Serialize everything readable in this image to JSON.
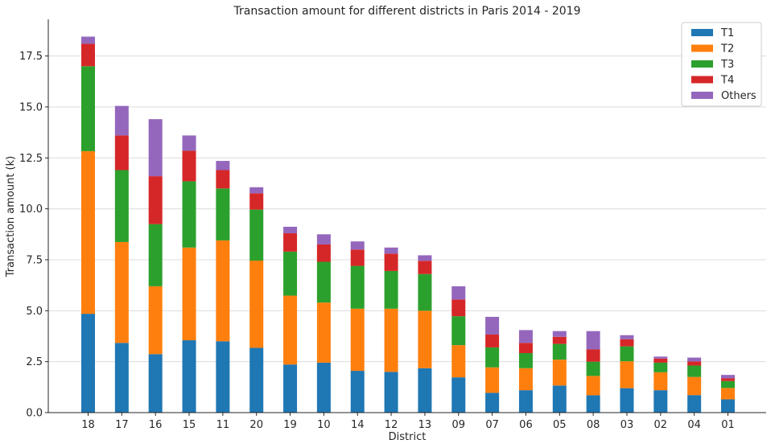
{
  "chart_data": {
    "type": "bar",
    "stacked": true,
    "title": "Transaction amount for different districts in Paris 2014 - 2019",
    "xlabel": "District",
    "ylabel": "Transaction amount (k)",
    "ylim": [
      0,
      19.3
    ],
    "yticks": [
      "0.0",
      "2.5",
      "5.0",
      "7.5",
      "10.0",
      "12.5",
      "15.0",
      "17.5"
    ],
    "ytick_values": [
      0,
      2.5,
      5,
      7.5,
      10,
      12.5,
      15,
      17.5
    ],
    "grid": "horizontal",
    "legend_position": "top-right",
    "categories": [
      "18",
      "17",
      "16",
      "15",
      "11",
      "20",
      "19",
      "10",
      "14",
      "12",
      "13",
      "09",
      "07",
      "06",
      "05",
      "08",
      "03",
      "02",
      "04",
      "01"
    ],
    "series": [
      {
        "name": "T1",
        "color": "#1f77b4",
        "values": [
          4.85,
          3.42,
          2.87,
          3.55,
          3.5,
          3.18,
          2.36,
          2.45,
          2.05,
          2.0,
          2.18,
          1.73,
          0.97,
          1.1,
          1.33,
          0.85,
          1.2,
          1.1,
          0.86,
          0.65
        ]
      },
      {
        "name": "T2",
        "color": "#ff7f0e",
        "values": [
          7.98,
          4.95,
          3.33,
          4.55,
          4.95,
          4.28,
          3.38,
          2.95,
          3.05,
          3.1,
          2.82,
          1.58,
          1.25,
          1.08,
          1.27,
          0.95,
          1.32,
          0.88,
          0.89,
          0.56
        ]
      },
      {
        "name": "T3",
        "color": "#2ca02c",
        "values": [
          4.17,
          3.53,
          3.05,
          3.25,
          2.55,
          2.5,
          2.16,
          2.0,
          2.1,
          1.85,
          1.8,
          1.42,
          0.98,
          0.74,
          0.77,
          0.7,
          0.73,
          0.47,
          0.56,
          0.34
        ]
      },
      {
        "name": "T4",
        "color": "#d62728",
        "values": [
          1.1,
          1.7,
          2.35,
          1.5,
          0.9,
          0.8,
          0.9,
          0.85,
          0.8,
          0.85,
          0.65,
          0.82,
          0.63,
          0.5,
          0.35,
          0.6,
          0.35,
          0.2,
          0.2,
          0.13
        ]
      },
      {
        "name": "Others",
        "color": "#9467bd",
        "values": [
          0.35,
          1.45,
          2.8,
          0.75,
          0.45,
          0.3,
          0.32,
          0.5,
          0.4,
          0.3,
          0.27,
          0.65,
          0.87,
          0.63,
          0.28,
          0.9,
          0.2,
          0.1,
          0.19,
          0.17
        ]
      }
    ]
  }
}
